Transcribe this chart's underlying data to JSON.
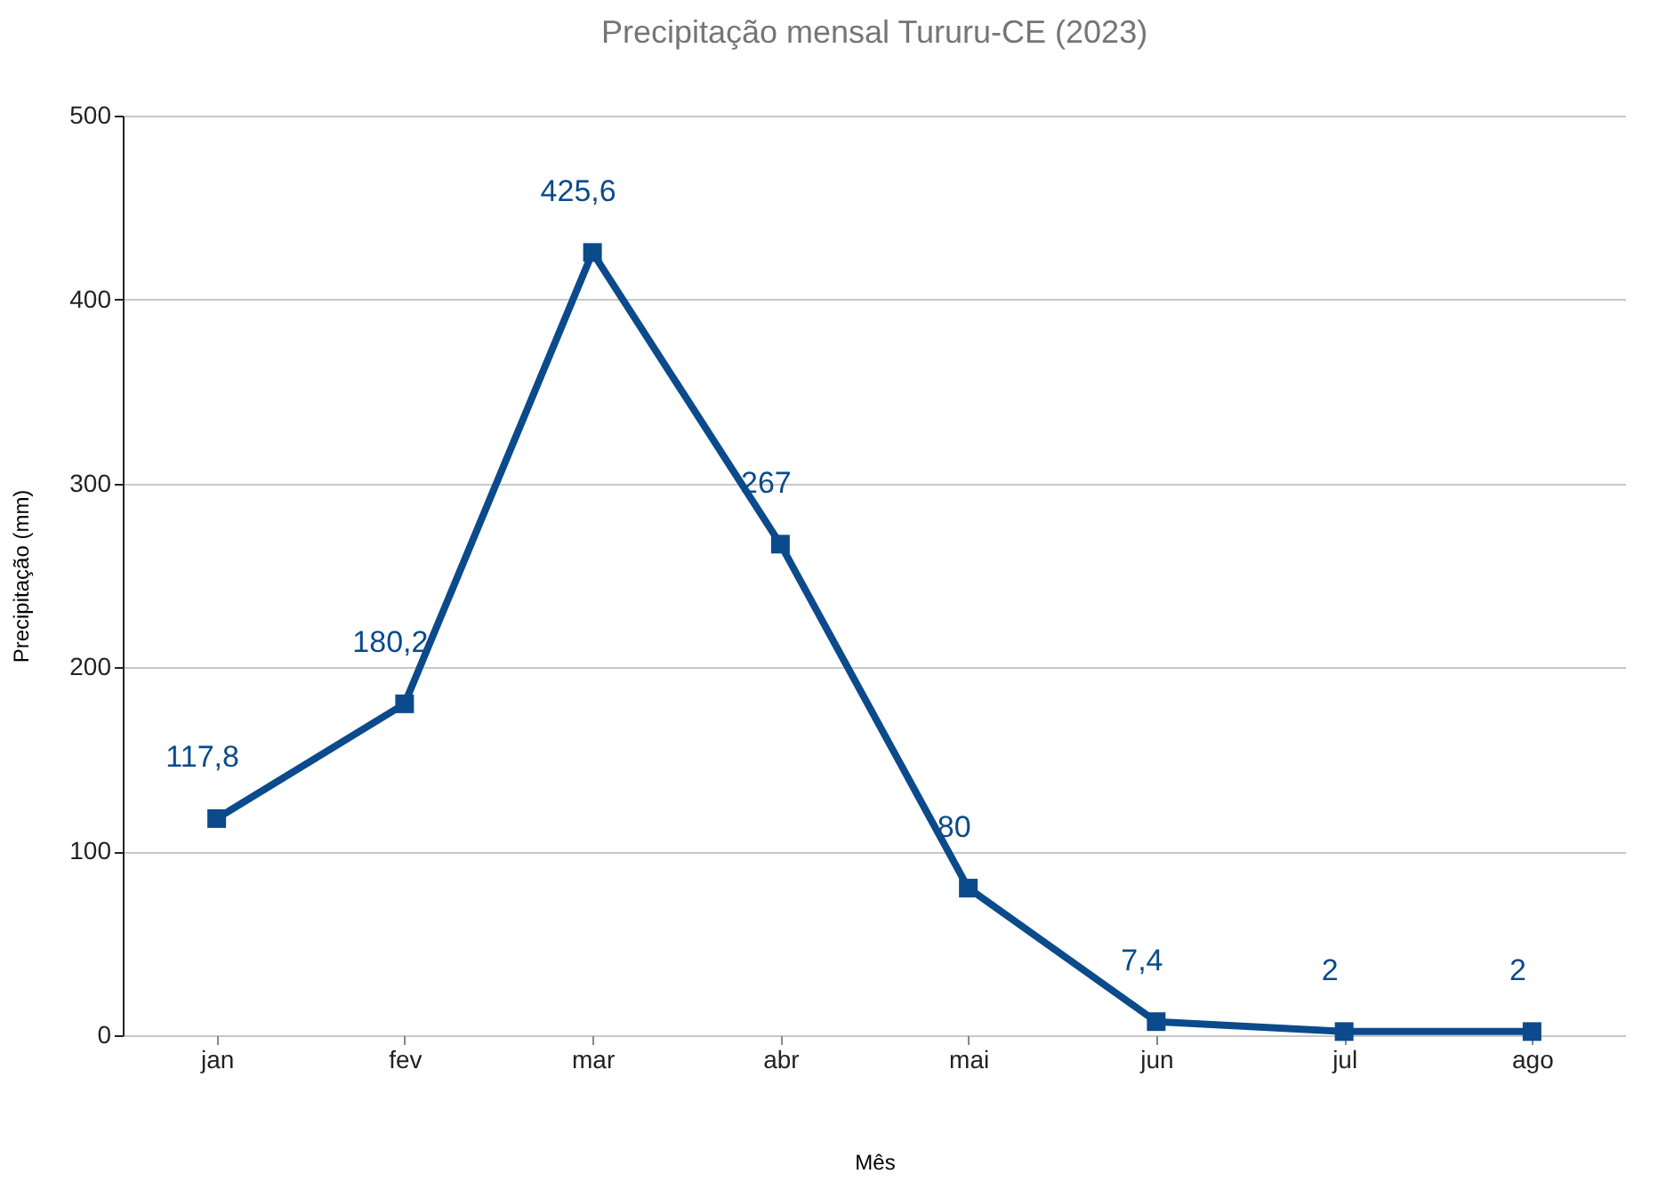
{
  "chart_data": {
    "type": "line",
    "title": "Precipitação mensal Tururu-CE (2023)",
    "xlabel": "Mês",
    "ylabel": "Precipitação (mm)",
    "categories": [
      "jan",
      "fev",
      "mar",
      "abr",
      "mai",
      "jun",
      "jul",
      "ago"
    ],
    "series": [
      {
        "color": "#0b4a8b",
        "values": [
          117.8,
          180.2,
          425.6,
          267,
          80,
          7.4,
          2,
          2
        ],
        "value_labels": [
          "117,8",
          "180,2",
          "425,6",
          "267",
          "80",
          "7,4",
          "2",
          "2"
        ]
      }
    ],
    "ylim": [
      0,
      500
    ],
    "yticks": [
      0,
      100,
      200,
      300,
      400,
      500
    ],
    "grid": "y",
    "marker": "square",
    "line_style": "solid"
  }
}
